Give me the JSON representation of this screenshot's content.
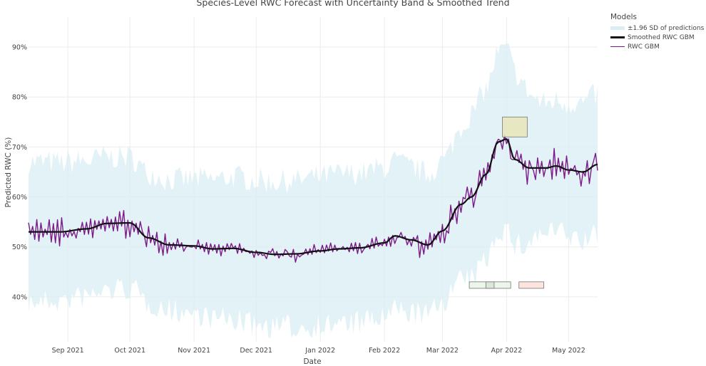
{
  "chart_data": {
    "type": "line",
    "title": "Species-Level RWC Forecast with Uncertainty Band & Smoothed Trend",
    "xlabel": "Date",
    "ylabel": "Predicted RWC (%)",
    "xlim": [
      "2021-08-13",
      "2022-05-15"
    ],
    "ylim": [
      31,
      96
    ],
    "grid": true,
    "y_ticks": [
      {
        "value": 40,
        "label": "40%"
      },
      {
        "value": 50,
        "label": "50%"
      },
      {
        "value": 60,
        "label": "60%"
      },
      {
        "value": 70,
        "label": "70%"
      },
      {
        "value": 80,
        "label": "80%"
      },
      {
        "value": 90,
        "label": "90%"
      }
    ],
    "x_ticks": [
      {
        "value": "2021-09-01",
        "label": "Sep 2021"
      },
      {
        "value": "2021-10-01",
        "label": "Oct 2021"
      },
      {
        "value": "2021-11-01",
        "label": "Nov 2021"
      },
      {
        "value": "2021-12-01",
        "label": "Dec 2021"
      },
      {
        "value": "2022-01-01",
        "label": "Jan 2022"
      },
      {
        "value": "2022-02-01",
        "label": "Feb 2022"
      },
      {
        "value": "2022-03-01",
        "label": "Mar 2022"
      },
      {
        "value": "2022-04-01",
        "label": "Apr 2022"
      },
      {
        "value": "2022-05-01",
        "label": "May 2022"
      }
    ],
    "legend": {
      "title": "Models",
      "placement": "top-right-outside",
      "entries": [
        "±1.96 SD of predictions",
        "Smoothed RWC GBM",
        "RWC GBM"
      ]
    },
    "smoothed_anchors": {
      "name": "Smoothed RWC GBM",
      "color": "#111111",
      "x": [
        "2021-08-13",
        "2021-08-28",
        "2021-09-10",
        "2021-09-20",
        "2021-10-01",
        "2021-10-10",
        "2021-10-20",
        "2021-11-01",
        "2021-11-10",
        "2021-11-20",
        "2021-12-01",
        "2021-12-10",
        "2021-12-20",
        "2022-01-01",
        "2022-01-10",
        "2022-01-20",
        "2022-02-01",
        "2022-02-06",
        "2022-02-14",
        "2022-02-22",
        "2022-03-01",
        "2022-03-10",
        "2022-03-15",
        "2022-03-22",
        "2022-03-28",
        "2022-04-01",
        "2022-04-05",
        "2022-04-12",
        "2022-04-20",
        "2022-04-25",
        "2022-05-01",
        "2022-05-08",
        "2022-05-15"
      ],
      "y": [
        53,
        53,
        53.6,
        54.7,
        54.8,
        51.8,
        50.4,
        50.2,
        49.6,
        49.7,
        48.9,
        48.5,
        48.6,
        49.2,
        49.6,
        49.8,
        50.8,
        52.2,
        51.4,
        50.4,
        53.2,
        58.5,
        60,
        64.5,
        71,
        71.6,
        67.5,
        65.8,
        65.8,
        66.2,
        65.4,
        65,
        66.5
      ]
    },
    "series_styles": [
      {
        "name": "RWC GBM",
        "color": "#7b1a8a"
      },
      {
        "name": "±1.96 SD of predictions",
        "color": "#d9edf3"
      }
    ],
    "band_halfwidth_anchors": {
      "x": [
        "2021-08-13",
        "2021-10-15",
        "2021-12-01",
        "2022-01-15",
        "2022-02-01",
        "2022-03-01",
        "2022-03-20",
        "2022-04-01",
        "2022-04-20",
        "2022-05-15"
      ],
      "halfwidth": [
        13,
        12,
        13.5,
        14,
        14,
        13,
        16,
        17,
        12,
        13
      ]
    },
    "annotations": [
      {
        "type": "rect",
        "name": "yellow-highlight",
        "x0": "2022-03-30",
        "x1": "2022-04-11",
        "y0": 72,
        "y1": 76,
        "color": "#e8e6b8"
      },
      {
        "type": "rect",
        "name": "green-marker-left",
        "x0": "2022-03-14",
        "x1": "2022-04-03",
        "y0": 41.7,
        "y1": 43,
        "color": "#eaf4e6"
      },
      {
        "type": "rect",
        "name": "green-marker-center",
        "x0": "2022-03-22",
        "x1": "2022-03-26",
        "y0": 41.7,
        "y1": 43,
        "color": "#d3e8d1"
      },
      {
        "type": "rect",
        "name": "red-marker",
        "x0": "2022-04-07",
        "x1": "2022-04-19",
        "y0": 41.7,
        "y1": 43,
        "color": "#fde0d8"
      }
    ]
  }
}
